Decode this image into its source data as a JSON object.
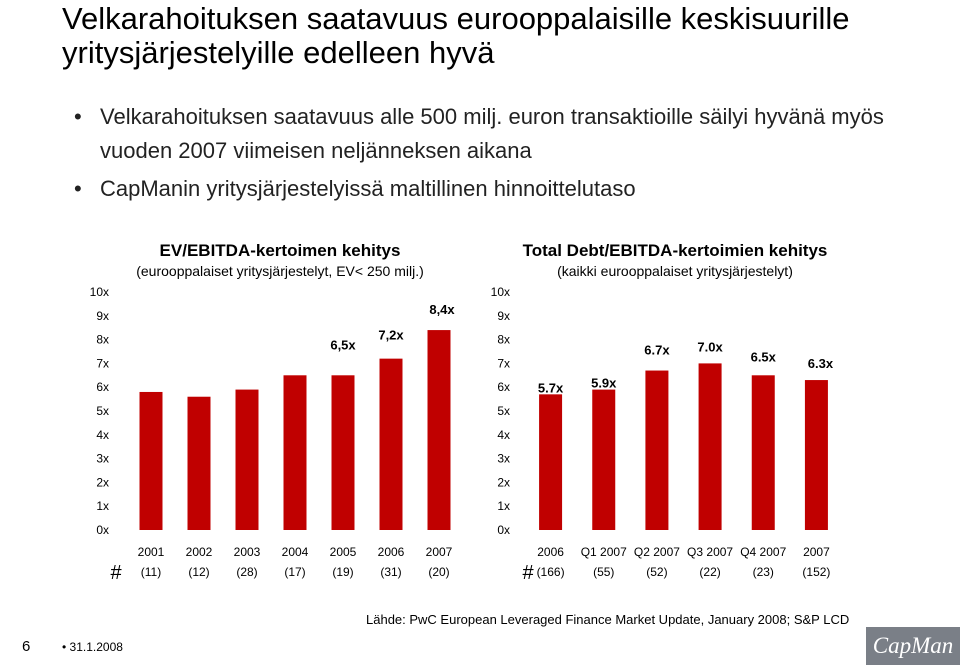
{
  "slide": {
    "title": "Velkarahoituksen saatavuus eurooppalaisille keskisuurille yritysjärjestelyille edelleen hyvä",
    "bullets": [
      "Velkarahoituksen saatavuus alle 500 milj. euron transaktioille säilyi hyvänä myös vuoden 2007 viimeisen neljänneksen aikana",
      "CapManin yritysjärjestelyissä maltillinen hinnoittelutaso"
    ],
    "bullet_glyph": "•",
    "source": "Lähde: PwC European Leveraged Finance Market Update, January 2008; S&P LCD",
    "page_number": "6",
    "date": "• 31.1.2008",
    "logo_text": "CapMan"
  },
  "chart_data": [
    {
      "type": "bar",
      "title": "EV/EBITDA-kertoimen kehitys",
      "subtitle": "(eurooppalaiset yritysjärjestelyt, EV< 250 milj.)",
      "categories": [
        "2001",
        "2002",
        "2003",
        "2004",
        "2005",
        "2006",
        "2007"
      ],
      "counts": [
        "(11)",
        "(12)",
        "(28)",
        "(17)",
        "(19)",
        "(31)",
        "(20)"
      ],
      "count_marker": "#",
      "values": [
        5.8,
        5.6,
        5.9,
        6.5,
        6.5,
        7.2,
        8.4
      ],
      "data_labels": [
        "",
        "",
        "",
        "",
        "6,5x",
        "7,2x",
        "8,4x"
      ],
      "ylim": [
        0,
        10
      ],
      "yticks": [
        "0x",
        "1x",
        "2x",
        "3x",
        "4x",
        "5x",
        "6x",
        "7x",
        "8x",
        "9x",
        "10x"
      ],
      "color": "#c00000",
      "grid": false
    },
    {
      "type": "bar",
      "title": "Total Debt/EBITDA-kertoimien kehitys",
      "subtitle": "(kaikki eurooppalaiset yritysjärjestelyt)",
      "categories": [
        "2006",
        "Q1 2007",
        "Q2 2007",
        "Q3 2007",
        "Q4 2007",
        "2007"
      ],
      "counts": [
        "(166)",
        "(55)",
        "(52)",
        "(22)",
        "(23)",
        "(152)"
      ],
      "count_marker": "#",
      "values": [
        5.7,
        5.9,
        6.7,
        7.0,
        6.5,
        6.3
      ],
      "data_labels": [
        "5.7x",
        "5.9x",
        "6.7x",
        "7.0x",
        "6.5x",
        "6.3x"
      ],
      "ylim": [
        0,
        10
      ],
      "yticks": [
        "0x",
        "1x",
        "2x",
        "3x",
        "4x",
        "5x",
        "6x",
        "7x",
        "8x",
        "9x",
        "10x"
      ],
      "color": "#c00000",
      "grid": false
    }
  ]
}
